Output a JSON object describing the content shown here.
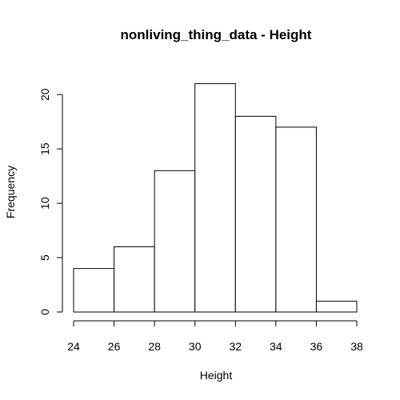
{
  "chart_data": {
    "type": "bar",
    "title": "nonliving_thing_data - Height",
    "xlabel": "Height",
    "ylabel": "Frequency",
    "bins": [
      {
        "from": 24,
        "to": 26,
        "count": 4
      },
      {
        "from": 26,
        "to": 28,
        "count": 6
      },
      {
        "from": 28,
        "to": 30,
        "count": 13
      },
      {
        "from": 30,
        "to": 32,
        "count": 21
      },
      {
        "from": 32,
        "to": 34,
        "count": 18
      },
      {
        "from": 34,
        "to": 36,
        "count": 17
      },
      {
        "from": 36,
        "to": 38,
        "count": 1
      }
    ],
    "xlim": [
      24,
      38
    ],
    "ylim": [
      0,
      22
    ],
    "xticks": [
      24,
      26,
      28,
      30,
      32,
      34,
      36,
      38
    ],
    "yticks": [
      0,
      5,
      10,
      15,
      20
    ],
    "grid": false,
    "legend": "none"
  }
}
